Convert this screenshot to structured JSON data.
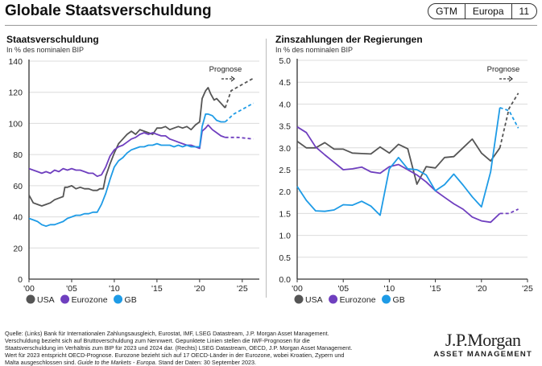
{
  "page": {
    "title": "Globale Staatsverschuldung",
    "badge": [
      "GTM",
      "Europa",
      "11"
    ],
    "footer": {
      "source": "Quelle: (Links) Bank für Internationalen Zahlungsausgleich, Eurostat, IMF, LSEG Datastream, J.P. Morgan Asset Management. Verschuldung bezieht sich auf Bruttoverschuldung zum Nennwert. Gepunktete Linien stellen die IWF-Prognosen für die Staatsverschuldung im Verhältnis zum BIP für 2023 und 2024 dar. (Rechts) LSEG Datastream, OECD, J.P. Morgan Asset Management. Wert für 2023 entspricht OECD-Prognose. Eurozone bezieht sich auf 17 OECD-Länder in der Eurozone, wobei Kroatien, Zypern und Malta ausgeschlossen sind. ",
      "guide": "Guide to the Markets - Europa",
      "date": ". Stand der Daten: 30 September 2023."
    },
    "logo": {
      "name": "J.P.Morgan",
      "sub": "ASSET MANAGEMENT"
    },
    "colors": {
      "USA": "#555555",
      "Eurozone": "#6f3fbf",
      "GB": "#1e9be6"
    }
  },
  "chart_data": [
    {
      "type": "line",
      "title": "Staatsverschuldung",
      "subtitle": "In % des nominalen BIP",
      "annotation": "Prognose",
      "xlabel": "",
      "ylabel": "",
      "xlim": [
        2000,
        2027
      ],
      "ylim": [
        0,
        140
      ],
      "yticks": [
        0,
        20,
        40,
        60,
        80,
        100,
        120,
        140
      ],
      "xticks": [
        2000,
        2005,
        2010,
        2015,
        2020,
        2025
      ],
      "xtick_labels": [
        "'00",
        "'05",
        "'10",
        "'15",
        "'20",
        "'25"
      ],
      "grid": true,
      "legend": "bottom-left",
      "series": [
        {
          "name": "USA",
          "x": [
            2000,
            2000.5,
            2001,
            2001.5,
            2002,
            2002.5,
            2003,
            2003.5,
            2004,
            2004.2,
            2004.5,
            2005,
            2005.5,
            2006,
            2006.5,
            2007,
            2007.5,
            2008,
            2008.3,
            2008.7,
            2009,
            2009.5,
            2010,
            2010.5,
            2011,
            2011.5,
            2012,
            2012.5,
            2013,
            2013.5,
            2014,
            2014.5,
            2015,
            2015.5,
            2016,
            2016.5,
            2017,
            2017.5,
            2018,
            2018.5,
            2019,
            2019.5,
            2020,
            2020.3,
            2020.7,
            2021,
            2021.3,
            2021.7,
            2022,
            2022.5,
            2023
          ],
          "y": [
            54,
            49,
            48,
            47,
            48,
            49,
            51,
            52,
            53,
            59,
            59,
            60,
            58,
            59,
            58,
            58,
            57,
            57,
            58,
            58,
            66,
            74,
            81,
            87,
            90,
            93,
            95,
            93,
            96,
            95,
            94,
            93,
            97,
            97,
            98,
            96,
            97,
            98,
            97,
            98,
            96,
            99,
            101,
            116,
            121,
            123,
            119,
            115,
            116,
            113,
            110
          ],
          "forecast_x": [
            2023,
            2023.7,
            2025,
            2026.3
          ],
          "forecast_y": [
            110,
            121,
            125,
            129
          ]
        },
        {
          "name": "Eurozone",
          "x": [
            2000,
            2000.5,
            2001,
            2001.5,
            2002,
            2002.5,
            2003,
            2003.5,
            2004,
            2004.5,
            2005,
            2005.5,
            2006,
            2006.5,
            2007,
            2007.5,
            2008,
            2008.5,
            2009,
            2009.5,
            2010,
            2010.5,
            2011,
            2011.5,
            2012,
            2012.5,
            2013,
            2013.5,
            2014,
            2014.5,
            2015,
            2015.5,
            2016,
            2016.5,
            2017,
            2017.5,
            2018,
            2018.5,
            2019,
            2019.5,
            2020,
            2020.3,
            2020.7,
            2021,
            2021.5,
            2022,
            2022.5,
            2023
          ],
          "y": [
            71,
            70,
            69,
            68,
            69,
            68,
            70,
            69,
            71,
            70,
            71,
            70,
            70,
            69,
            68,
            68,
            66,
            67,
            72,
            79,
            83,
            85,
            86,
            88,
            90,
            91,
            93,
            94,
            93,
            94,
            93,
            92,
            92,
            90,
            89,
            88,
            87,
            86,
            86,
            85,
            84,
            95,
            97,
            99,
            96,
            94,
            92,
            91
          ],
          "forecast_x": [
            2023,
            2024.5,
            2026.3
          ],
          "forecast_y": [
            91,
            91,
            90
          ]
        },
        {
          "name": "GB",
          "x": [
            2000,
            2000.5,
            2001,
            2001.5,
            2002,
            2002.5,
            2003,
            2003.5,
            2004,
            2004.5,
            2005,
            2005.5,
            2006,
            2006.5,
            2007,
            2007.5,
            2008,
            2008.5,
            2009,
            2009.5,
            2010,
            2010.5,
            2011,
            2011.5,
            2012,
            2012.5,
            2013,
            2013.5,
            2014,
            2014.5,
            2015,
            2015.5,
            2016,
            2016.5,
            2017,
            2017.5,
            2018,
            2018.5,
            2019,
            2019.5,
            2020,
            2020.3,
            2020.7,
            2021,
            2021.5,
            2022,
            2022.5,
            2023
          ],
          "y": [
            39,
            38,
            37,
            35,
            34,
            35,
            35,
            36,
            37,
            39,
            40,
            41,
            41,
            42,
            42,
            43,
            43,
            48,
            55,
            64,
            72,
            76,
            78,
            81,
            83,
            84,
            85,
            85,
            86,
            86,
            87,
            86,
            86,
            86,
            85,
            86,
            85,
            86,
            85,
            85,
            85,
            98,
            106,
            106,
            105,
            102,
            101,
            101
          ],
          "forecast_x": [
            2023,
            2024,
            2025,
            2026.3
          ],
          "forecast_y": [
            101,
            106,
            109,
            113
          ]
        }
      ]
    },
    {
      "type": "line",
      "title": "Zinszahlungen der Regierungen",
      "subtitle": "In % des nominalen BIP",
      "annotation": "Prognose",
      "xlabel": "",
      "ylabel": "",
      "xlim": [
        2000,
        2025
      ],
      "ylim": [
        0,
        5
      ],
      "yticks": [
        0.0,
        0.5,
        1.0,
        1.5,
        2.0,
        2.5,
        3.0,
        3.5,
        4.0,
        4.5,
        5.0
      ],
      "ytick_labels": [
        "0.0",
        "0.5",
        "1.0",
        "1.5",
        "2.0",
        "2.5",
        "3.0",
        "3.5",
        "4.0",
        "4.5",
        "5.0"
      ],
      "xticks": [
        2000,
        2005,
        2010,
        2015,
        2020,
        2025
      ],
      "xtick_labels": [
        "'00",
        "'05",
        "'10",
        "'15",
        "'20",
        "'25"
      ],
      "grid": true,
      "legend": "bottom-left",
      "series": [
        {
          "name": "USA",
          "x": [
            2000,
            2001,
            2002,
            2003,
            2004,
            2005,
            2006,
            2007,
            2008,
            2009,
            2010,
            2011,
            2012,
            2013,
            2014,
            2015,
            2016,
            2017,
            2018,
            2019,
            2020,
            2021,
            2022
          ],
          "y": [
            3.15,
            3.0,
            3.0,
            3.12,
            2.97,
            2.97,
            2.88,
            2.87,
            2.86,
            3.02,
            2.88,
            3.08,
            2.98,
            2.17,
            2.57,
            2.54,
            2.78,
            2.8,
            3.0,
            3.2,
            2.88,
            2.7,
            3.0
          ],
          "forecast_x": [
            2022,
            2023,
            2024
          ],
          "forecast_y": [
            3.0,
            3.9,
            4.25
          ]
        },
        {
          "name": "Eurozone",
          "x": [
            2000,
            2001,
            2002,
            2003,
            2004,
            2005,
            2006,
            2007,
            2008,
            2009,
            2010,
            2011,
            2012,
            2013,
            2014,
            2015,
            2016,
            2017,
            2018,
            2019,
            2020,
            2021,
            2022
          ],
          "y": [
            3.48,
            3.35,
            3.02,
            2.84,
            2.67,
            2.5,
            2.52,
            2.56,
            2.45,
            2.42,
            2.57,
            2.62,
            2.5,
            2.38,
            2.22,
            2.02,
            1.87,
            1.72,
            1.6,
            1.42,
            1.33,
            1.3,
            1.5
          ],
          "forecast_x": [
            2022,
            2023,
            2024
          ],
          "forecast_y": [
            1.5,
            1.5,
            1.6
          ]
        },
        {
          "name": "GB",
          "x": [
            2000,
            2001,
            2002,
            2003,
            2004,
            2005,
            2006,
            2007,
            2008,
            2009,
            2010,
            2011,
            2012,
            2013,
            2014,
            2015,
            2016,
            2017,
            2018,
            2019,
            2020,
            2021,
            2022
          ],
          "y": [
            2.12,
            1.8,
            1.56,
            1.55,
            1.58,
            1.7,
            1.69,
            1.78,
            1.67,
            1.46,
            2.52,
            2.78,
            2.52,
            2.5,
            2.38,
            2.02,
            2.16,
            2.4,
            2.15,
            1.88,
            1.65,
            2.45,
            3.92
          ],
          "forecast_x": [
            2022,
            2023,
            2024
          ],
          "forecast_y": [
            3.92,
            3.85,
            3.45
          ]
        }
      ]
    }
  ]
}
